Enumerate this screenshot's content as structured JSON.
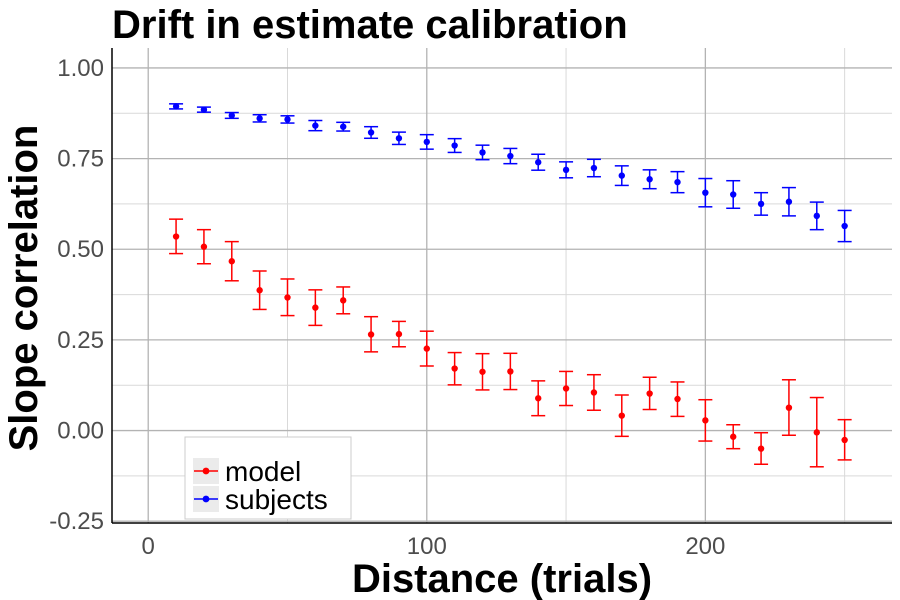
{
  "chart_data": {
    "type": "scatter",
    "title": "Drift in estimate calibration",
    "xlabel": "Distance (trials)",
    "ylabel": "Slope correlation",
    "xlim": [
      -13,
      267
    ],
    "ylim": [
      -0.255,
      1.055
    ],
    "x_ticks": [
      0,
      100,
      200
    ],
    "x_tick_labels": [
      "0",
      "100",
      "200"
    ],
    "y_ticks": [
      -0.25,
      0,
      0.25,
      0.5,
      0.75,
      1
    ],
    "y_tick_labels": [
      "-0.25",
      "0.00",
      "0.25",
      "0.50",
      "0.75",
      "1.00"
    ],
    "grid": true,
    "legend_position": "bottom-left",
    "error_bars": true,
    "x": [
      10,
      20,
      30,
      40,
      50,
      60,
      70,
      80,
      90,
      100,
      110,
      120,
      130,
      140,
      150,
      160,
      170,
      180,
      190,
      200,
      210,
      220,
      230,
      240,
      250
    ],
    "series": [
      {
        "name": "model",
        "color": "#ff0000",
        "values": [
          0.535,
          0.507,
          0.467,
          0.387,
          0.367,
          0.339,
          0.359,
          0.265,
          0.266,
          0.226,
          0.171,
          0.162,
          0.163,
          0.089,
          0.116,
          0.105,
          0.041,
          0.102,
          0.087,
          0.028,
          -0.017,
          -0.05,
          0.063,
          -0.005,
          -0.026
        ],
        "lower": [
          0.488,
          0.46,
          0.413,
          0.334,
          0.317,
          0.29,
          0.322,
          0.217,
          0.231,
          0.178,
          0.126,
          0.112,
          0.113,
          0.041,
          0.069,
          0.056,
          -0.016,
          0.058,
          0.039,
          -0.029,
          -0.05,
          -0.093,
          -0.013,
          -0.1,
          -0.081
        ],
        "upper": [
          0.583,
          0.554,
          0.521,
          0.44,
          0.418,
          0.388,
          0.396,
          0.314,
          0.301,
          0.274,
          0.215,
          0.212,
          0.213,
          0.137,
          0.163,
          0.154,
          0.098,
          0.147,
          0.134,
          0.085,
          0.016,
          -0.006,
          0.14,
          0.091,
          0.03
        ]
      },
      {
        "name": "subjects",
        "color": "#0000ff",
        "values": [
          0.894,
          0.885,
          0.869,
          0.861,
          0.858,
          0.841,
          0.838,
          0.822,
          0.806,
          0.796,
          0.786,
          0.767,
          0.757,
          0.74,
          0.719,
          0.724,
          0.703,
          0.693,
          0.685,
          0.656,
          0.651,
          0.625,
          0.631,
          0.592,
          0.564
        ],
        "lower": [
          0.887,
          0.878,
          0.861,
          0.851,
          0.848,
          0.827,
          0.826,
          0.806,
          0.789,
          0.776,
          0.767,
          0.747,
          0.736,
          0.718,
          0.697,
          0.7,
          0.676,
          0.667,
          0.656,
          0.617,
          0.613,
          0.594,
          0.592,
          0.554,
          0.521
        ],
        "upper": [
          0.901,
          0.892,
          0.877,
          0.871,
          0.868,
          0.855,
          0.85,
          0.838,
          0.823,
          0.816,
          0.805,
          0.787,
          0.778,
          0.762,
          0.741,
          0.748,
          0.73,
          0.719,
          0.714,
          0.695,
          0.689,
          0.656,
          0.67,
          0.63,
          0.607
        ]
      }
    ]
  }
}
